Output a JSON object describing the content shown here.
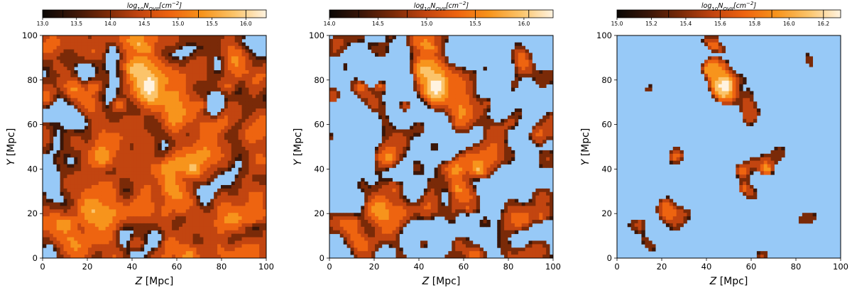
{
  "colors": {
    "background": "#97c9f7",
    "density_stops": [
      "#0a0705",
      "#3a1608",
      "#7a2a08",
      "#c24510",
      "#ee6410",
      "#f7941c",
      "#fbc46a",
      "#fff3e0"
    ]
  },
  "chart_data": [
    {
      "type": "heatmap",
      "colorbar": {
        "label": "log10 N_OVII [cm^-2]",
        "label_base": "log",
        "label_sub": "10",
        "label_N": "N",
        "label_ion": "OVII",
        "label_unit": "[cm",
        "label_exp": "−2",
        "label_close": "]",
        "range": [
          13.0,
          16.3
        ],
        "ticks": [
          13.0,
          13.5,
          14.0,
          14.5,
          15.0,
          15.5,
          16.0
        ],
        "tick_labels": [
          "13.0",
          "13.5",
          "14.0",
          "14.5",
          "15.0",
          "15.5",
          "16.0"
        ],
        "contour_levels": [
          13.3,
          14.0,
          14.6,
          15.3,
          16.0
        ]
      },
      "xlabel_var": "Z",
      "xlabel_unit": " [Mpc]",
      "ylabel_var": "Y",
      "ylabel_unit": " [Mpc]",
      "xlim": [
        0,
        100
      ],
      "ylim": [
        0,
        100
      ],
      "xticks": [
        "0",
        "20",
        "40",
        "60",
        "80",
        "100"
      ],
      "yticks": [
        "0",
        "20",
        "40",
        "60",
        "80",
        "100"
      ],
      "fill_fraction": 0.9
    },
    {
      "type": "heatmap",
      "colorbar": {
        "label": "log10 N_OVII [cm^-2]",
        "label_base": "log",
        "label_sub": "10",
        "label_N": "N",
        "label_ion": "OVII",
        "label_unit": "[cm",
        "label_exp": "−2",
        "label_close": "]",
        "range": [
          14.0,
          16.3
        ],
        "ticks": [
          14.0,
          14.5,
          15.0,
          15.5,
          16.0
        ],
        "tick_labels": [
          "14.0",
          "14.5",
          "15.0",
          "15.5",
          "16.0"
        ],
        "contour_levels": [
          14.3,
          14.8,
          15.5,
          16.05
        ]
      },
      "xlabel_var": "Z",
      "xlabel_unit": " [Mpc]",
      "ylabel_var": "Y",
      "ylabel_unit": " [Mpc]",
      "xlim": [
        0,
        100
      ],
      "ylim": [
        0,
        100
      ],
      "xticks": [
        "0",
        "20",
        "40",
        "60",
        "80",
        "100"
      ],
      "yticks": [
        "0",
        "20",
        "40",
        "60",
        "80",
        "100"
      ],
      "fill_fraction": 0.45
    },
    {
      "type": "heatmap",
      "colorbar": {
        "label": "log10 N_OVII [cm^-2]",
        "label_base": "log",
        "label_sub": "10",
        "label_N": "N",
        "label_ion": "OVII",
        "label_unit": "[cm",
        "label_exp": "−2",
        "label_close": "]",
        "range": [
          15.0,
          16.3
        ],
        "ticks": [
          15.0,
          15.2,
          15.4,
          15.6,
          15.8,
          16.0,
          16.2
        ],
        "tick_labels": [
          "15.0",
          "15.2",
          "15.4",
          "15.6",
          "15.8",
          "16.0",
          "16.2"
        ],
        "contour_levels": [
          15.3,
          15.6,
          15.9,
          16.2
        ]
      },
      "xlabel_var": "Z",
      "xlabel_unit": " [Mpc]",
      "ylabel_var": "Y",
      "ylabel_unit": " [Mpc]",
      "xlim": [
        0,
        100
      ],
      "ylim": [
        0,
        100
      ],
      "xticks": [
        "0",
        "20",
        "40",
        "60",
        "80",
        "100"
      ],
      "yticks": [
        "0",
        "20",
        "40",
        "60",
        "80",
        "100"
      ],
      "fill_fraction": 0.1
    }
  ]
}
